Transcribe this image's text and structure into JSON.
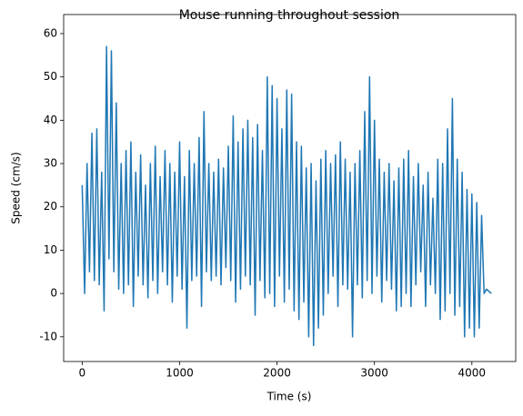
{
  "chart_data": {
    "type": "line",
    "title": "Mouse running throughout session",
    "x_label": "Time (s)",
    "y_label": "Speed (cm/s)",
    "color": "#1f77b4",
    "x": [
      0,
      25,
      50,
      75,
      100,
      125,
      150,
      175,
      200,
      225,
      250,
      275,
      300,
      325,
      350,
      375,
      400,
      425,
      450,
      475,
      500,
      525,
      550,
      575,
      600,
      625,
      650,
      675,
      700,
      725,
      750,
      775,
      800,
      825,
      850,
      875,
      900,
      925,
      950,
      975,
      1000,
      1025,
      1050,
      1075,
      1100,
      1125,
      1150,
      1175,
      1200,
      1225,
      1250,
      1275,
      1300,
      1325,
      1350,
      1375,
      1400,
      1425,
      1450,
      1475,
      1500,
      1525,
      1550,
      1575,
      1600,
      1625,
      1650,
      1675,
      1700,
      1725,
      1750,
      1775,
      1800,
      1825,
      1850,
      1875,
      1900,
      1925,
      1950,
      1975,
      2000,
      2025,
      2050,
      2075,
      2100,
      2125,
      2150,
      2175,
      2200,
      2225,
      2250,
      2275,
      2300,
      2325,
      2350,
      2375,
      2400,
      2425,
      2450,
      2475,
      2500,
      2525,
      2550,
      2575,
      2600,
      2625,
      2650,
      2675,
      2700,
      2725,
      2750,
      2775,
      2800,
      2825,
      2850,
      2875,
      2900,
      2925,
      2950,
      2975,
      3000,
      3025,
      3050,
      3075,
      3100,
      3125,
      3150,
      3175,
      3200,
      3225,
      3250,
      3275,
      3300,
      3325,
      3350,
      3375,
      3400,
      3425,
      3450,
      3475,
      3500,
      3525,
      3550,
      3575,
      3600,
      3625,
      3650,
      3675,
      3700,
      3725,
      3750,
      3775,
      3800,
      3825,
      3850,
      3875,
      3900,
      3925,
      3950,
      3975,
      4000,
      4025,
      4050,
      4075,
      4100,
      4125,
      4150,
      4200
    ],
    "values": [
      25,
      0,
      30,
      5,
      37,
      3,
      38,
      2,
      28,
      -4,
      57,
      8,
      56,
      5,
      44,
      1,
      30,
      0,
      33,
      2,
      35,
      -3,
      28,
      4,
      32,
      2,
      25,
      -1,
      30,
      3,
      34,
      0,
      27,
      5,
      33,
      2,
      30,
      -2,
      28,
      4,
      35,
      1,
      27,
      -8,
      33,
      3,
      30,
      4,
      36,
      -3,
      42,
      5,
      30,
      3,
      28,
      4,
      31,
      2,
      29,
      6,
      34,
      3,
      41,
      -2,
      35,
      1,
      38,
      4,
      40,
      2,
      36,
      -5,
      39,
      3,
      33,
      -1,
      50,
      0,
      48,
      -3,
      45,
      4,
      38,
      -2,
      47,
      1,
      46,
      -4,
      35,
      -6,
      34,
      -2,
      29,
      -10,
      30,
      -12,
      26,
      -8,
      31,
      -5,
      33,
      0,
      30,
      4,
      32,
      -3,
      35,
      2,
      31,
      1,
      28,
      -10,
      30,
      2,
      33,
      -1,
      42,
      3,
      50,
      0,
      40,
      4,
      31,
      -2,
      28,
      3,
      30,
      1,
      26,
      -4,
      29,
      -3,
      31,
      0,
      33,
      -3,
      27,
      2,
      30,
      5,
      25,
      -3,
      28,
      2,
      22,
      0,
      31,
      -6,
      30,
      -4,
      38,
      0,
      45,
      -5,
      31,
      -3,
      28,
      -10,
      24,
      -8,
      23,
      -10,
      21,
      -8,
      18,
      0,
      1,
      0
    ],
    "xlim": [
      -190,
      4450
    ],
    "ylim": [
      -15.7,
      64.4
    ],
    "xticks": [
      0,
      1000,
      2000,
      3000,
      4000
    ],
    "yticks": [
      -10,
      0,
      10,
      20,
      30,
      40,
      50,
      60
    ]
  }
}
